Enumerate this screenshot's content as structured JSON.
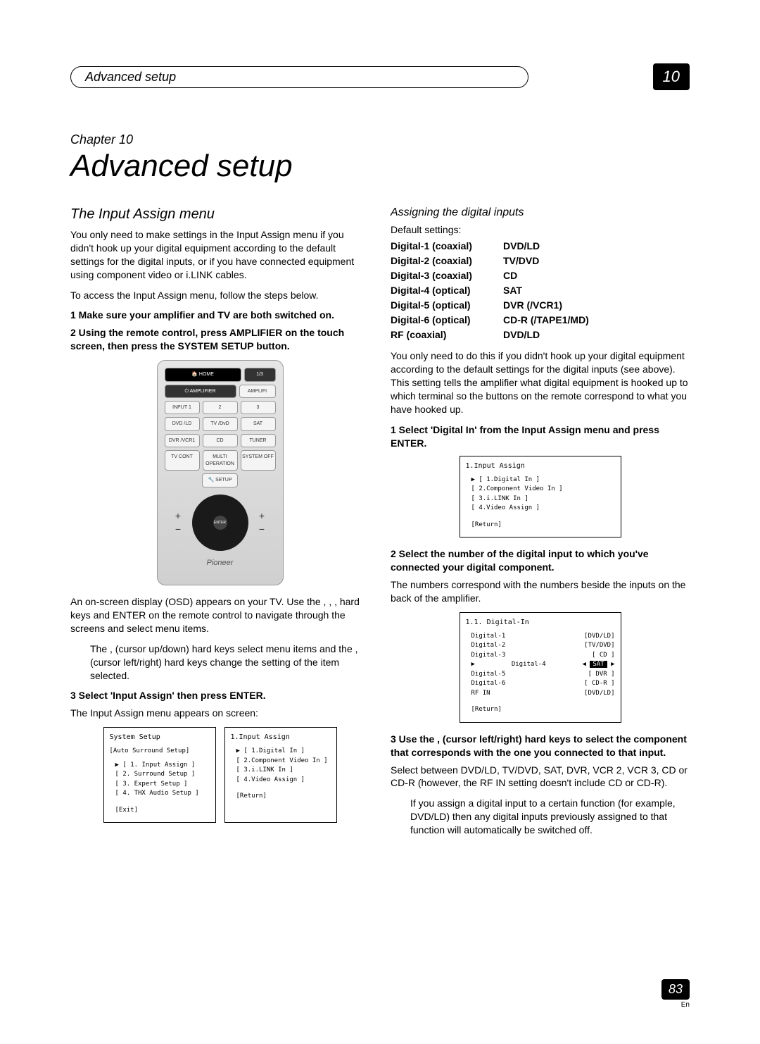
{
  "header": {
    "section_title": "Advanced setup",
    "page_tab": "10"
  },
  "chapter": {
    "label": "Chapter 10",
    "title": "Advanced setup"
  },
  "left": {
    "heading": "The Input Assign menu",
    "intro": "You only need to make settings in the Input Assign menu if you didn't hook up your digital equipment according to the default settings for the digital inputs, or if you have connected equipment using component video or i.LINK cables.",
    "access": "To access the Input Assign menu, follow the steps below.",
    "step1": "1   Make sure your amplifier and TV are both switched on.",
    "step2": "2   Using the remote control, press AMPLIFIER on the touch screen, then press the SYSTEM SETUP button.",
    "remote": {
      "home": "HOME",
      "home_page": "1/3",
      "amp": "AMPLIFIER",
      "input": "INPUT 1",
      "b2": "2",
      "b3": "3",
      "dvd": "DVD /LD",
      "tvdvd": "TV /DvD",
      "sat": "SAT",
      "dvr": "DVR /VCR1",
      "cd": "CD",
      "tuner": "TUNER",
      "tvcont": "TV CONT",
      "multi": "MULTI OPERATION",
      "sysoff": "SYSTEM OFF",
      "setup": "SETUP",
      "enter": "ENTER",
      "brand": "Pioneer"
    },
    "osd_note_1": "An on-screen display (OSD) appears on your TV. Use the  ,  ,  ,   hard keys and ENTER on the remote control to navigate through the screens and select menu items.",
    "osd_note_2": "The  ,   (cursor up/down) hard keys select menu items and the  ,   (cursor left/right) hard keys change the setting of the item selected.",
    "step3": "3   Select 'Input Assign' then press ENTER.",
    "step3_sub": "The Input Assign menu appears on screen:",
    "osd_left": {
      "title": "System Setup",
      "sub": "[Auto Surround Setup]",
      "items": [
        "1. Input Assign",
        "[ 2. Surround Setup ]",
        "[ 3. Expert Setup ]",
        "[ 4. THX Audio Setup ]"
      ],
      "ret": "[Exit]"
    },
    "osd_right": {
      "title": "1.Input Assign",
      "items": [
        "1.Digital In",
        "[ 2.Component Video In ]",
        "[ 3.i.LINK In ]",
        "[ 4.Video Assign ]"
      ],
      "ret": "[Return]"
    }
  },
  "right": {
    "heading": "Assigning the digital inputs",
    "defaults_label": "Default settings:",
    "defaults": [
      {
        "k": "Digital-1 (coaxial)",
        "v": "DVD/LD"
      },
      {
        "k": "Digital-2 (coaxial)",
        "v": "TV/DVD"
      },
      {
        "k": "Digital-3 (coaxial)",
        "v": "CD"
      },
      {
        "k": "Digital-4 (optical)",
        "v": "SAT"
      },
      {
        "k": "Digital-5 (optical)",
        "v": "DVR (/VCR1)"
      },
      {
        "k": "Digital-6 (optical)",
        "v": "CD-R (/TAPE1/MD)"
      },
      {
        "k": "   RF (coaxial)",
        "v": "DVD/LD"
      }
    ],
    "para1": "You only need to do this if you didn't hook up your digital equipment according to the default settings for the digital inputs (see above). This setting tells the amplifier what digital equipment is hooked up to which terminal so the buttons on the remote correspond to what you have hooked up.",
    "step1": "1   Select 'Digital In' from the Input Assign menu and press ENTER.",
    "osd1": {
      "title": "1.Input Assign",
      "items": [
        "1.Digital In",
        "[ 2.Component Video In ]",
        "[ 3.i.LINK In ]",
        "[ 4.Video Assign ]"
      ],
      "ret": "[Return]"
    },
    "step2": "2   Select the number of the digital input to which you've connected your digital component.",
    "step2_sub": "The numbers correspond with the numbers beside the inputs on the back of the amplifier.",
    "osd2": {
      "title": "1.1. Digital-In",
      "rows": [
        {
          "k": "Digital-1",
          "v": "[DVD/LD]"
        },
        {
          "k": "Digital-2",
          "v": "[TV/DVD]"
        },
        {
          "k": "Digital-3",
          "v": "[  CD  ]"
        },
        {
          "k": "Digital-4",
          "v": "SAT",
          "sel": true
        },
        {
          "k": "Digital-5",
          "v": "[  DVR ]"
        },
        {
          "k": "Digital-6",
          "v": "[ CD-R ]"
        },
        {
          "k": "RF  IN",
          "v": "[DVD/LD]"
        }
      ],
      "ret": "[Return]"
    },
    "step3": "3   Use the  ,   (cursor left/right) hard keys to select the component that corresponds with the one you connected to that input.",
    "step3_sub": "Select between DVD/LD, TV/DVD, SAT, DVR, VCR 2, VCR 3, CD or CD-R (however, the RF IN setting doesn't include CD or CD-R).",
    "note": "If you assign a digital input to a certain function (for example, DVD/LD) then any digital inputs previously assigned to that function will automatically be switched off."
  },
  "footer": {
    "page": "83",
    "lang": "En"
  }
}
